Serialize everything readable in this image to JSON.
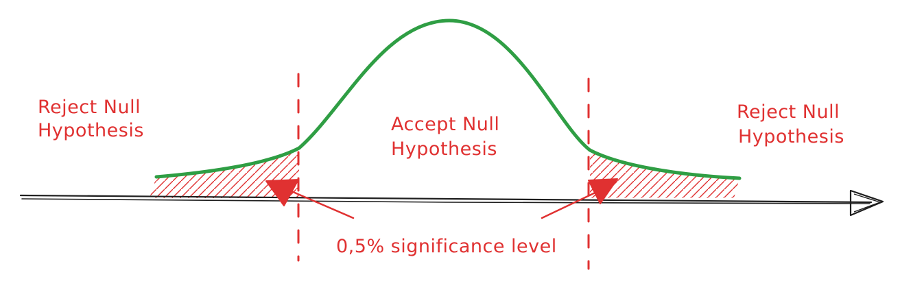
{
  "labels": {
    "reject_left_line1": "Reject Null",
    "reject_left_line2": "Hypothesis",
    "accept_line1": "Accept Null",
    "accept_line2": "Hypothesis",
    "reject_right_line1": "Reject Null",
    "reject_right_line2": "Hypothesis",
    "significance": "0,5% significance level"
  },
  "colors": {
    "curve": "#2f9e44",
    "annotation": "#e03131",
    "axis": "#1e1e1e",
    "background": "#ffffff"
  }
}
